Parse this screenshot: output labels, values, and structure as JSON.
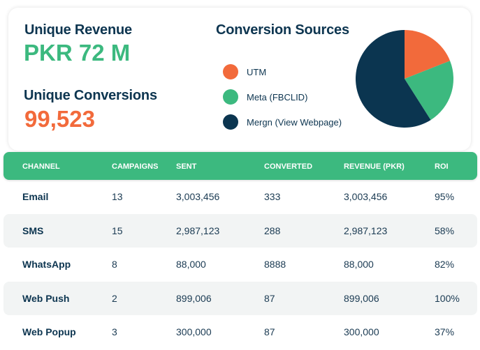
{
  "summary": {
    "revenue_label": "Unique Revenue",
    "revenue_value": "PKR 72 M",
    "conversions_label": "Unique Conversions",
    "conversions_value": "99,523"
  },
  "colors": {
    "navy": "#0b3550",
    "green": "#3cb97f",
    "orange": "#f26a3b"
  },
  "chart_data": {
    "type": "pie",
    "title": "Conversion Sources",
    "legend_position": "left",
    "series": [
      {
        "name": "UTM",
        "value": 19,
        "color": "#f26a3b"
      },
      {
        "name": "Meta (FBCLID)",
        "value": 22,
        "color": "#3cb97f"
      },
      {
        "name": "Mergn (View Webpage)",
        "value": 59,
        "color": "#0b3550"
      }
    ]
  },
  "table": {
    "headers": [
      "CHANNEL",
      "CAMPAIGNS",
      "SENT",
      "CONVERTED",
      "REVENUE (PKR)",
      "ROI"
    ],
    "rows": [
      [
        "Email",
        "13",
        "3,003,456",
        "333",
        "3,003,456",
        "95%"
      ],
      [
        "SMS",
        "15",
        "2,987,123",
        "288",
        "2,987,123",
        "58%"
      ],
      [
        "WhatsApp",
        "8",
        "88,000",
        "8888",
        "88,000",
        "82%"
      ],
      [
        "Web Push",
        "2",
        "899,006",
        "87",
        "899,006",
        "100%"
      ],
      [
        "Web Popup",
        "3",
        "300,000",
        "87",
        "300,000",
        "37%"
      ]
    ]
  }
}
